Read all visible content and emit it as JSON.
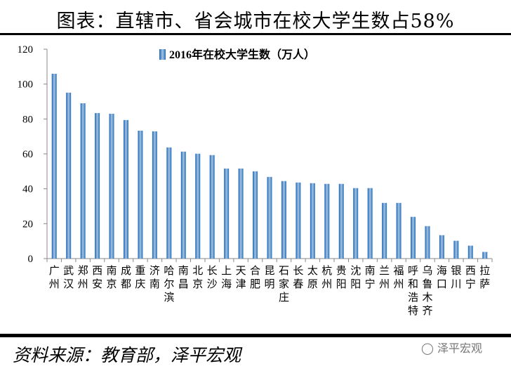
{
  "title": "图表：直辖市、省会城市在校大学生数占58%",
  "footer": {
    "source": "资料来源：教育部，泽平宏观",
    "watermark": "泽平宏观",
    "watermark_icon": "wechat-icon"
  },
  "chart_data": {
    "type": "bar",
    "title": "",
    "legend": {
      "label": "2016年在校大学生数（万人）",
      "position": "top"
    },
    "xlabel": "",
    "ylabel": "",
    "ylim": [
      0,
      120
    ],
    "yticks": [
      0,
      20,
      40,
      60,
      80,
      100,
      120
    ],
    "grid": false,
    "color": "#2E75B6",
    "categories": [
      "广州",
      "武汉",
      "郑州",
      "西安",
      "南京",
      "成都",
      "重庆",
      "济南",
      "哈尔滨",
      "南昌",
      "北京",
      "长沙",
      "上海",
      "天津",
      "合肥",
      "昆明",
      "石家庄",
      "长春",
      "太原",
      "杭州",
      "贵阳",
      "沈阳",
      "南宁",
      "兰州",
      "福州",
      "呼和浩特",
      "乌鲁木齐",
      "海口",
      "银川",
      "西宁",
      "拉萨"
    ],
    "series": [
      {
        "name": "2016年在校大学生数（万人）",
        "values": [
          105.9,
          95.1,
          89.0,
          83.4,
          83.0,
          79.4,
          73.3,
          72.9,
          63.7,
          61.3,
          60.1,
          59.3,
          51.6,
          51.6,
          50.0,
          46.8,
          44.4,
          43.6,
          43.2,
          42.8,
          42.8,
          40.4,
          40.4,
          31.9,
          31.9,
          23.9,
          18.6,
          13.4,
          10.2,
          7.4,
          3.8
        ]
      }
    ]
  }
}
